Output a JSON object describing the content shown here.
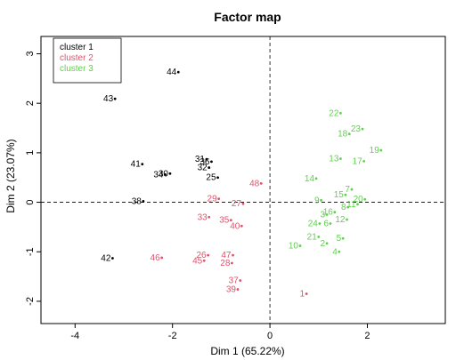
{
  "chart_data": {
    "type": "scatter",
    "title": "Factor map",
    "xlabel": "Dim 1 (65.22%)",
    "ylabel": "Dim 2 (23.07%)",
    "xlim": [
      -4.7,
      3.6
    ],
    "ylim": [
      -2.45,
      3.35
    ],
    "xticks": [
      -4,
      -2,
      0,
      2
    ],
    "yticks": [
      -2,
      -1,
      0,
      1,
      2,
      3
    ],
    "reference_lines": {
      "x": 0,
      "y": 0,
      "style": "dashed"
    },
    "legend": {
      "position": "top-left",
      "entries": [
        {
          "label": "cluster 1",
          "color": "#000000"
        },
        {
          "label": "cluster 2",
          "color": "#DF536B"
        },
        {
          "label": "cluster 3",
          "color": "#61D04F"
        }
      ]
    },
    "series": [
      {
        "name": "cluster 1",
        "color": "#000000",
        "points": [
          {
            "label": "44",
            "x": -1.88,
            "y": 2.63
          },
          {
            "label": "43",
            "x": -3.18,
            "y": 2.09
          },
          {
            "label": "31",
            "x": -1.3,
            "y": 0.87
          },
          {
            "label": "36",
            "x": -1.2,
            "y": 0.82
          },
          {
            "label": "32",
            "x": -1.25,
            "y": 0.7
          },
          {
            "label": "41",
            "x": -2.62,
            "y": 0.77
          },
          {
            "label": "34",
            "x": -2.15,
            "y": 0.56
          },
          {
            "label": "30",
            "x": -2.05,
            "y": 0.58
          },
          {
            "label": "25",
            "x": -1.07,
            "y": 0.5
          },
          {
            "label": "38",
            "x": -2.6,
            "y": 0.02
          },
          {
            "label": "42",
            "x": -3.23,
            "y": -1.13
          }
        ]
      },
      {
        "name": "cluster 2",
        "color": "#DF536B",
        "points": [
          {
            "label": "48",
            "x": -0.18,
            "y": 0.38
          },
          {
            "label": "29",
            "x": -1.05,
            "y": 0.07
          },
          {
            "label": "27",
            "x": -0.55,
            "y": -0.03
          },
          {
            "label": "33",
            "x": -1.25,
            "y": -0.3
          },
          {
            "label": "40",
            "x": -0.58,
            "y": -0.48
          },
          {
            "label": "35",
            "x": -0.8,
            "y": -0.36
          },
          {
            "label": "26",
            "x": -1.27,
            "y": -1.07
          },
          {
            "label": "47",
            "x": -0.76,
            "y": -1.07
          },
          {
            "label": "46",
            "x": -2.22,
            "y": -1.12
          },
          {
            "label": "45",
            "x": -1.35,
            "y": -1.18
          },
          {
            "label": "28",
            "x": -0.78,
            "y": -1.23
          },
          {
            "label": "37",
            "x": -0.61,
            "y": -1.58
          },
          {
            "label": "39",
            "x": -0.66,
            "y": -1.76
          },
          {
            "label": "1",
            "x": 0.75,
            "y": -1.85
          }
        ]
      },
      {
        "name": "cluster 3",
        "color": "#61D04F",
        "points": [
          {
            "label": "22",
            "x": 1.45,
            "y": 1.8
          },
          {
            "label": "23",
            "x": 1.9,
            "y": 1.48
          },
          {
            "label": "18",
            "x": 1.63,
            "y": 1.38
          },
          {
            "label": "19",
            "x": 2.28,
            "y": 1.05
          },
          {
            "label": "13",
            "x": 1.45,
            "y": 0.88
          },
          {
            "label": "17",
            "x": 1.93,
            "y": 0.83
          },
          {
            "label": "14",
            "x": 0.95,
            "y": 0.48
          },
          {
            "label": "7",
            "x": 1.68,
            "y": 0.26
          },
          {
            "label": "15",
            "x": 1.55,
            "y": 0.15
          },
          {
            "label": "20",
            "x": 1.95,
            "y": 0.06
          },
          {
            "label": "9",
            "x": 1.05,
            "y": 0.04
          },
          {
            "label": "11",
            "x": 1.8,
            "y": -0.04
          },
          {
            "label": "8",
            "x": 1.6,
            "y": -0.1
          },
          {
            "label": "3",
            "x": 1.17,
            "y": -0.25
          },
          {
            "label": "16",
            "x": 1.33,
            "y": -0.2
          },
          {
            "label": "24",
            "x": 1.02,
            "y": -0.43
          },
          {
            "label": "6",
            "x": 1.24,
            "y": -0.43
          },
          {
            "label": "12",
            "x": 1.58,
            "y": -0.35
          },
          {
            "label": "5",
            "x": 1.5,
            "y": -0.73
          },
          {
            "label": "21",
            "x": 1.0,
            "y": -0.7
          },
          {
            "label": "2",
            "x": 1.17,
            "y": -0.83
          },
          {
            "label": "10",
            "x": 0.62,
            "y": -0.88
          },
          {
            "label": "4",
            "x": 1.42,
            "y": -1.0
          }
        ]
      }
    ]
  }
}
